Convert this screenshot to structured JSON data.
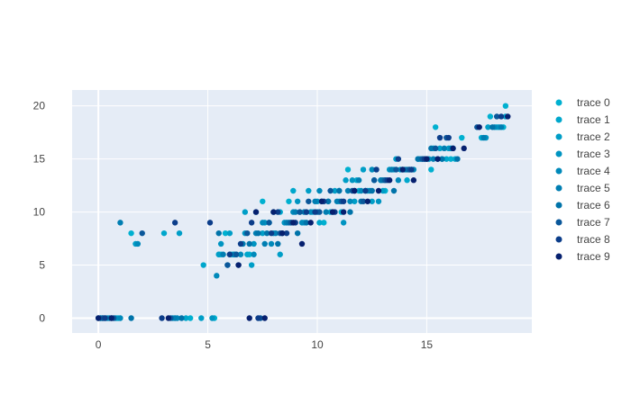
{
  "chart_data": {
    "type": "scatter",
    "title": "",
    "xlabel": "",
    "ylabel": "",
    "xlim": [
      -1.2,
      19.8
    ],
    "ylim": [
      -1.4,
      21.5
    ],
    "xticks": [
      0,
      5,
      10,
      15
    ],
    "yticks": [
      0,
      5,
      10,
      15,
      20
    ],
    "grid": true,
    "legend_position": "right",
    "series": [
      {
        "name": "trace 0",
        "color": "#00b0d0",
        "points": [
          [
            0.1,
            0
          ],
          [
            0.9,
            0
          ],
          [
            1.5,
            8
          ],
          [
            4.2,
            0
          ],
          [
            5.3,
            0
          ],
          [
            5.6,
            6
          ],
          [
            5.8,
            8
          ],
          [
            6.1,
            6
          ],
          [
            6.9,
            6
          ],
          [
            7.5,
            11
          ],
          [
            8.7,
            11
          ],
          [
            9.8,
            10
          ],
          [
            10.3,
            9
          ],
          [
            11.1,
            10
          ],
          [
            11.4,
            14
          ],
          [
            11.9,
            12
          ],
          [
            12.6,
            13
          ],
          [
            13.1,
            12
          ],
          [
            13.9,
            14
          ],
          [
            14.6,
            15
          ],
          [
            15.2,
            14
          ],
          [
            15.4,
            18
          ],
          [
            16.1,
            15
          ],
          [
            16.6,
            17
          ],
          [
            17.9,
            19
          ],
          [
            18.6,
            20
          ],
          [
            18.5,
            18
          ]
        ]
      },
      {
        "name": "trace 1",
        "color": "#00a7cc",
        "points": [
          [
            0.3,
            0
          ],
          [
            3.0,
            8
          ],
          [
            4.0,
            0
          ],
          [
            4.8,
            5
          ],
          [
            5.5,
            6
          ],
          [
            6.3,
            6
          ],
          [
            6.8,
            6
          ],
          [
            7.2,
            10
          ],
          [
            7.8,
            9
          ],
          [
            8.3,
            10
          ],
          [
            8.9,
            12
          ],
          [
            9.4,
            9
          ],
          [
            10.1,
            9
          ],
          [
            10.6,
            10
          ],
          [
            11.0,
            11
          ],
          [
            11.8,
            13
          ],
          [
            12.3,
            12
          ],
          [
            12.9,
            13
          ],
          [
            13.5,
            14
          ],
          [
            14.1,
            13
          ],
          [
            14.8,
            15
          ],
          [
            15.3,
            16
          ],
          [
            15.9,
            15
          ],
          [
            16.3,
            15
          ],
          [
            17.5,
            17
          ],
          [
            18.2,
            18
          ],
          [
            18.6,
            19
          ]
        ]
      },
      {
        "name": "trace 2",
        "color": "#009ec7",
        "points": [
          [
            0.6,
            0
          ],
          [
            1.7,
            7
          ],
          [
            3.7,
            8
          ],
          [
            4.7,
            0
          ],
          [
            5.5,
            6
          ],
          [
            6.0,
            8
          ],
          [
            6.7,
            10
          ],
          [
            7.0,
            5
          ],
          [
            7.5,
            8
          ],
          [
            8.0,
            10
          ],
          [
            8.3,
            6
          ],
          [
            8.8,
            9
          ],
          [
            9.2,
            10
          ],
          [
            9.6,
            12
          ],
          [
            10.2,
            11
          ],
          [
            10.8,
            12
          ],
          [
            11.3,
            13
          ],
          [
            11.7,
            11
          ],
          [
            12.1,
            14
          ],
          [
            12.5,
            11
          ],
          [
            13.0,
            12
          ],
          [
            13.6,
            15
          ],
          [
            14.2,
            14
          ],
          [
            14.9,
            15
          ],
          [
            15.6,
            16
          ],
          [
            16.0,
            16
          ],
          [
            17.8,
            18
          ]
        ]
      },
      {
        "name": "trace 3",
        "color": "#0094c1",
        "points": [
          [
            0.2,
            0
          ],
          [
            0.8,
            0
          ],
          [
            3.4,
            0
          ],
          [
            5.2,
            0
          ],
          [
            5.6,
            7
          ],
          [
            6.2,
            6
          ],
          [
            6.7,
            8
          ],
          [
            7.1,
            7
          ],
          [
            7.6,
            9
          ],
          [
            8.0,
            8
          ],
          [
            8.5,
            9
          ],
          [
            9.1,
            11
          ],
          [
            9.5,
            10
          ],
          [
            10.0,
            11
          ],
          [
            10.7,
            10
          ],
          [
            11.2,
            9
          ],
          [
            11.6,
            13
          ],
          [
            12.2,
            12
          ],
          [
            12.8,
            11
          ],
          [
            13.3,
            14
          ],
          [
            13.8,
            14
          ],
          [
            14.3,
            14
          ],
          [
            15.1,
            15
          ],
          [
            15.7,
            15
          ],
          [
            16.2,
            16
          ],
          [
            17.7,
            17
          ],
          [
            18.3,
            18
          ]
        ]
      },
      {
        "name": "trace 4",
        "color": "#0089ba",
        "points": [
          [
            0.4,
            0
          ],
          [
            1.0,
            0
          ],
          [
            1.8,
            7
          ],
          [
            3.6,
            0
          ],
          [
            5.4,
            4
          ],
          [
            5.9,
            5
          ],
          [
            6.5,
            6
          ],
          [
            7.1,
            6
          ],
          [
            7.5,
            9
          ],
          [
            7.9,
            7
          ],
          [
            8.4,
            8
          ],
          [
            8.9,
            10
          ],
          [
            9.3,
            9
          ],
          [
            9.7,
            10
          ],
          [
            10.1,
            12
          ],
          [
            10.5,
            11
          ],
          [
            11.0,
            12
          ],
          [
            11.5,
            11
          ],
          [
            12.0,
            12
          ],
          [
            12.5,
            14
          ],
          [
            13.1,
            13
          ],
          [
            13.7,
            13
          ],
          [
            14.4,
            14
          ],
          [
            15.0,
            15
          ],
          [
            15.5,
            15
          ],
          [
            16.1,
            16
          ],
          [
            18.1,
            18
          ]
        ]
      },
      {
        "name": "trace 5",
        "color": "#007eb2",
        "points": [
          [
            0.0,
            0
          ],
          [
            0.5,
            0
          ],
          [
            1.0,
            9
          ],
          [
            3.5,
            0
          ],
          [
            5.7,
            6
          ],
          [
            6.2,
            6
          ],
          [
            6.6,
            7
          ],
          [
            7.2,
            8
          ],
          [
            7.6,
            7
          ],
          [
            8.1,
            8
          ],
          [
            8.6,
            9
          ],
          [
            9.0,
            10
          ],
          [
            9.4,
            10
          ],
          [
            9.9,
            11
          ],
          [
            10.4,
            10
          ],
          [
            10.9,
            11
          ],
          [
            11.4,
            12
          ],
          [
            11.9,
            13
          ],
          [
            12.4,
            12
          ],
          [
            12.9,
            13
          ],
          [
            13.4,
            14
          ],
          [
            14.0,
            14
          ],
          [
            14.7,
            15
          ],
          [
            15.3,
            15
          ],
          [
            15.8,
            16
          ],
          [
            17.6,
            17
          ],
          [
            18.4,
            18
          ]
        ]
      },
      {
        "name": "trace 6",
        "color": "#0073a9",
        "points": [
          [
            0.1,
            0
          ],
          [
            1.5,
            0
          ],
          [
            3.8,
            0
          ],
          [
            5.5,
            8
          ],
          [
            6.0,
            6
          ],
          [
            6.4,
            5
          ],
          [
            6.9,
            7
          ],
          [
            7.3,
            8
          ],
          [
            7.7,
            8
          ],
          [
            8.2,
            7
          ],
          [
            8.7,
            9
          ],
          [
            9.1,
            8
          ],
          [
            9.5,
            9
          ],
          [
            10.0,
            10
          ],
          [
            10.5,
            11
          ],
          [
            11.0,
            12
          ],
          [
            11.5,
            10
          ],
          [
            12.0,
            11
          ],
          [
            12.5,
            12
          ],
          [
            13.0,
            13
          ],
          [
            13.5,
            12
          ],
          [
            14.1,
            14
          ],
          [
            14.6,
            15
          ],
          [
            15.2,
            16
          ],
          [
            15.7,
            15
          ],
          [
            16.4,
            15
          ],
          [
            18.0,
            18
          ]
        ]
      },
      {
        "name": "trace 7",
        "color": "#0a579a",
        "points": [
          [
            0.2,
            0
          ],
          [
            0.7,
            0
          ],
          [
            2.0,
            8
          ],
          [
            3.3,
            0
          ],
          [
            5.9,
            5
          ],
          [
            6.3,
            6
          ],
          [
            6.8,
            8
          ],
          [
            7.4,
            0
          ],
          [
            7.8,
            9
          ],
          [
            8.3,
            8
          ],
          [
            8.8,
            9
          ],
          [
            9.2,
            10
          ],
          [
            9.6,
            11
          ],
          [
            10.1,
            10
          ],
          [
            10.6,
            12
          ],
          [
            11.1,
            11
          ],
          [
            11.6,
            12
          ],
          [
            12.1,
            11
          ],
          [
            12.6,
            13
          ],
          [
            13.1,
            13
          ],
          [
            13.6,
            14
          ],
          [
            14.2,
            14
          ],
          [
            14.8,
            15
          ],
          [
            15.4,
            16
          ],
          [
            15.9,
            17
          ],
          [
            17.3,
            18
          ],
          [
            18.2,
            19
          ]
        ]
      },
      {
        "name": "trace 8",
        "color": "#0b3d8a",
        "points": [
          [
            0.3,
            0
          ],
          [
            2.9,
            0
          ],
          [
            3.5,
            9
          ],
          [
            5.1,
            9
          ],
          [
            6.0,
            6
          ],
          [
            6.5,
            7
          ],
          [
            7.0,
            9
          ],
          [
            7.3,
            0
          ],
          [
            7.9,
            8
          ],
          [
            8.2,
            10
          ],
          [
            8.6,
            8
          ],
          [
            9.0,
            9
          ],
          [
            9.5,
            10
          ],
          [
            9.9,
            10
          ],
          [
            10.3,
            11
          ],
          [
            10.8,
            10
          ],
          [
            11.2,
            11
          ],
          [
            11.7,
            12
          ],
          [
            12.2,
            12
          ],
          [
            12.7,
            14
          ],
          [
            13.2,
            13
          ],
          [
            13.7,
            15
          ],
          [
            14.3,
            14
          ],
          [
            14.9,
            15
          ],
          [
            15.6,
            17
          ],
          [
            16.0,
            17
          ],
          [
            18.4,
            19
          ]
        ]
      },
      {
        "name": "trace 9",
        "color": "#06206f",
        "points": [
          [
            0.0,
            0
          ],
          [
            0.6,
            0
          ],
          [
            3.2,
            0
          ],
          [
            6.4,
            5
          ],
          [
            6.9,
            0
          ],
          [
            7.2,
            10
          ],
          [
            7.6,
            0
          ],
          [
            8.0,
            10
          ],
          [
            8.4,
            8
          ],
          [
            8.9,
            9
          ],
          [
            9.3,
            7
          ],
          [
            9.7,
            9
          ],
          [
            10.2,
            11
          ],
          [
            10.7,
            10
          ],
          [
            11.2,
            10
          ],
          [
            11.7,
            12
          ],
          [
            12.3,
            11
          ],
          [
            12.8,
            12
          ],
          [
            13.3,
            13
          ],
          [
            13.9,
            14
          ],
          [
            14.4,
            13
          ],
          [
            15.0,
            15
          ],
          [
            15.5,
            15
          ],
          [
            16.2,
            16
          ],
          [
            16.7,
            16
          ],
          [
            17.4,
            18
          ],
          [
            18.7,
            19
          ]
        ]
      }
    ]
  }
}
